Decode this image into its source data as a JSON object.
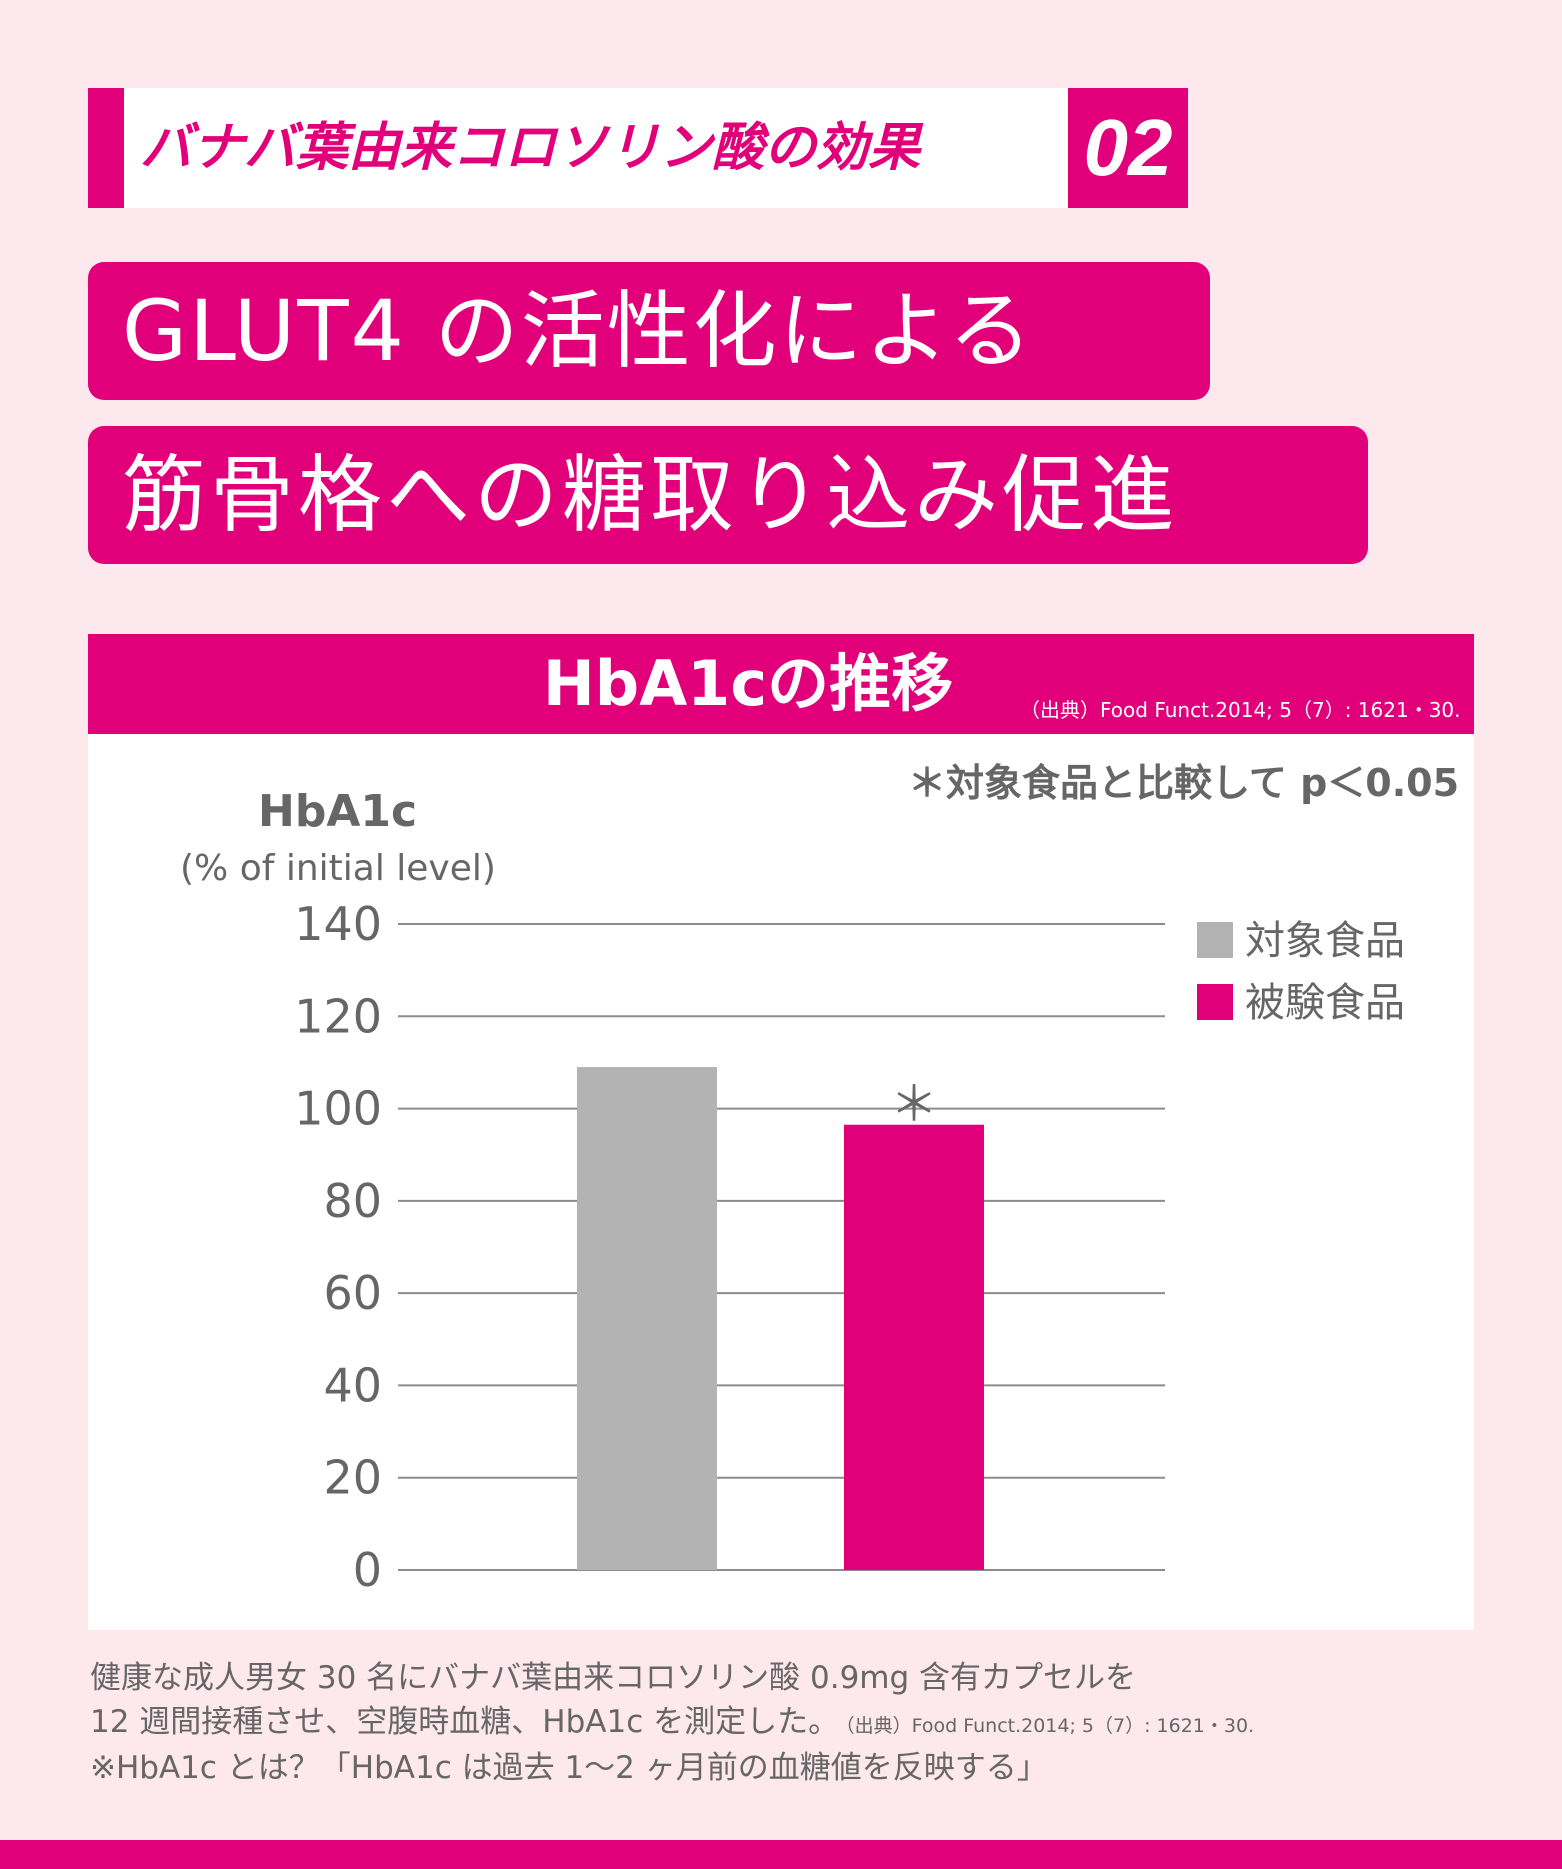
{
  "section": {
    "title": "バナバ葉由来コロソリン酸の効果",
    "number": "02"
  },
  "headline": {
    "line1": "GLUT4 の活性化による",
    "line2": "筋骨格への糖取り込み促進"
  },
  "chart_header": {
    "title": "HbA1cの推移",
    "source": "（出典）Food Funct.2014; 5（7）: 1621・30.",
    "significance_note": "＊対象食品と比較して p＜0.05"
  },
  "colors": {
    "accent": "#e2007a",
    "control": "#b3b3b3",
    "background": "#fde8ee",
    "text": "#666666"
  },
  "chart_data": {
    "type": "bar",
    "ylabel": "HbA1c",
    "ylabel_sub": "(% of initial level)",
    "ylim": [
      0,
      140
    ],
    "yticks": [
      0,
      20,
      40,
      60,
      80,
      100,
      120,
      140
    ],
    "grid": true,
    "legend_position": "top-right",
    "series": [
      {
        "name": "対象食品",
        "value": 109,
        "color": "#b3b3b3",
        "marker": ""
      },
      {
        "name": "被験食品",
        "value": 96.5,
        "color": "#e2007a",
        "marker": "＊"
      }
    ]
  },
  "notes": {
    "line1": "健康な成人男女 30 名にバナバ葉由来コロソリン酸 0.9mg 含有カプセルを",
    "line2": "12 週間接種させ、空腹時血糖、HbA1c を測定した。",
    "line2_source": "（出典）Food Funct.2014; 5（7）: 1621・30.",
    "line3": "※HbA1c とは？「HbA1c は過去 1〜2 ヶ月前の血糖値を反映する」"
  }
}
